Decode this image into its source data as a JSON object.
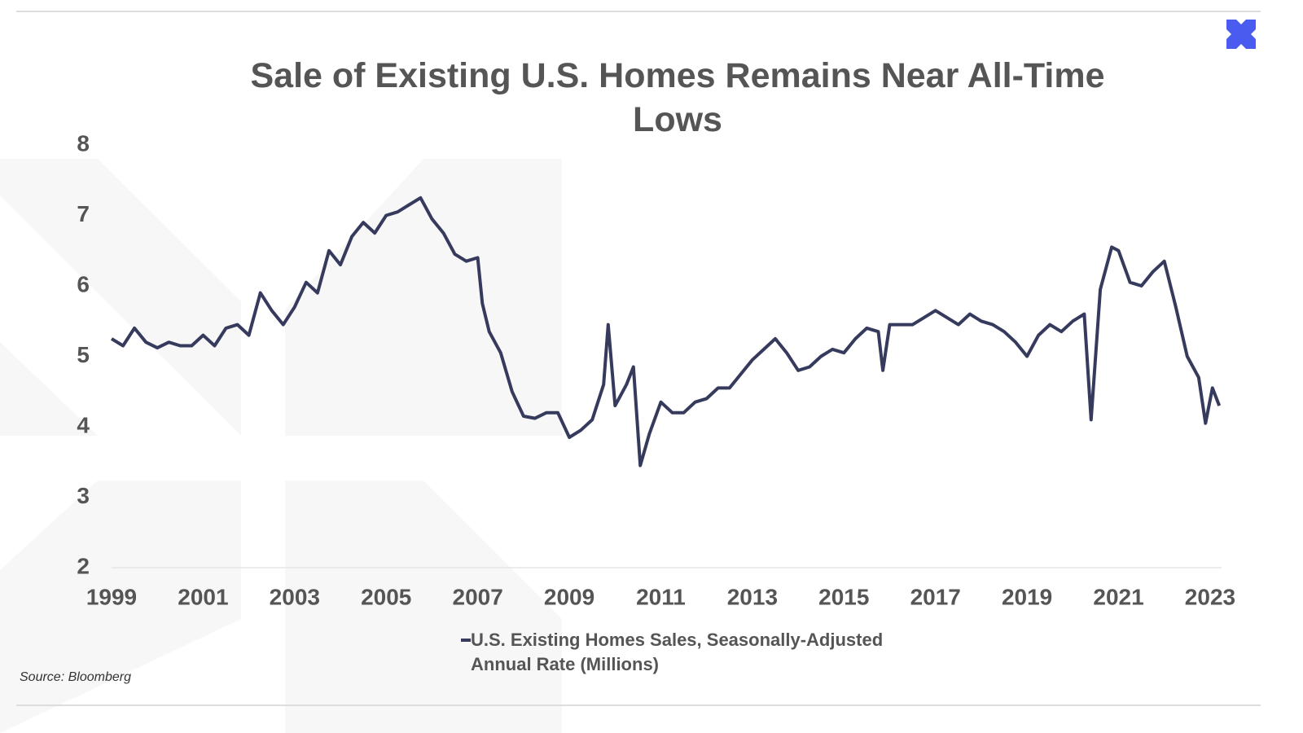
{
  "chart_data": {
    "type": "line",
    "title": "Sale of Existing U.S. Homes Remains Near All-Time Lows",
    "source": "Source: Bloomberg",
    "x": [
      1999.0,
      1999.25,
      1999.5,
      1999.75,
      2000.0,
      2000.25,
      2000.5,
      2000.75,
      2001.0,
      2001.25,
      2001.5,
      2001.75,
      2002.0,
      2002.25,
      2002.5,
      2002.75,
      2003.0,
      2003.25,
      2003.5,
      2003.75,
      2004.0,
      2004.25,
      2004.5,
      2004.75,
      2005.0,
      2005.25,
      2005.5,
      2005.75,
      2006.0,
      2006.25,
      2006.5,
      2006.75,
      2007.0,
      2007.1,
      2007.25,
      2007.5,
      2007.75,
      2008.0,
      2008.25,
      2008.5,
      2008.75,
      2009.0,
      2009.25,
      2009.5,
      2009.75,
      2009.85,
      2010.0,
      2010.25,
      2010.4,
      2010.55,
      2010.75,
      2011.0,
      2011.25,
      2011.5,
      2011.75,
      2012.0,
      2012.25,
      2012.5,
      2012.75,
      2013.0,
      2013.25,
      2013.5,
      2013.75,
      2014.0,
      2014.25,
      2014.5,
      2014.75,
      2015.0,
      2015.25,
      2015.5,
      2015.75,
      2015.85,
      2016.0,
      2016.25,
      2016.5,
      2016.75,
      2017.0,
      2017.25,
      2017.5,
      2017.75,
      2018.0,
      2018.25,
      2018.5,
      2018.75,
      2019.0,
      2019.25,
      2019.5,
      2019.75,
      2020.0,
      2020.25,
      2020.4,
      2020.6,
      2020.85,
      2021.0,
      2021.25,
      2021.5,
      2021.75,
      2022.0,
      2022.25,
      2022.5,
      2022.75,
      2022.9,
      2023.05,
      2023.2
    ],
    "series": [
      {
        "name": "U.S. Existing Homes Sales, Seasonally-Adjusted Annual Rate (Millions)",
        "color": "#363b5e",
        "values": [
          5.25,
          5.15,
          5.4,
          5.2,
          5.12,
          5.2,
          5.15,
          5.15,
          5.3,
          5.15,
          5.4,
          5.45,
          5.3,
          5.9,
          5.65,
          5.45,
          5.7,
          6.05,
          5.9,
          6.5,
          6.3,
          6.7,
          6.9,
          6.75,
          7.0,
          7.05,
          7.15,
          7.25,
          6.95,
          6.75,
          6.45,
          6.35,
          6.4,
          5.75,
          5.35,
          5.05,
          4.5,
          4.15,
          4.12,
          4.2,
          4.2,
          3.85,
          3.95,
          4.1,
          4.6,
          5.45,
          4.3,
          4.6,
          4.85,
          3.45,
          3.9,
          4.35,
          4.2,
          4.2,
          4.35,
          4.4,
          4.55,
          4.55,
          4.75,
          4.95,
          5.1,
          5.25,
          5.05,
          4.8,
          4.85,
          5.0,
          5.1,
          5.05,
          5.25,
          5.4,
          5.35,
          4.8,
          5.45,
          5.45,
          5.45,
          5.55,
          5.65,
          5.55,
          5.45,
          5.6,
          5.5,
          5.45,
          5.35,
          5.2,
          5.0,
          5.3,
          5.45,
          5.35,
          5.5,
          5.6,
          4.1,
          5.95,
          6.55,
          6.5,
          6.05,
          6.0,
          6.2,
          6.35,
          5.7,
          5.0,
          4.7,
          4.05,
          4.55,
          4.3
        ]
      }
    ],
    "xlim": [
      1999,
      2023.25
    ],
    "xticks": [
      1999,
      2001,
      2003,
      2005,
      2007,
      2009,
      2011,
      2013,
      2015,
      2017,
      2019,
      2021,
      2023
    ],
    "ylim": [
      2,
      8
    ],
    "yticks": [
      2,
      3,
      4,
      5,
      6,
      7,
      8
    ],
    "grid": false
  }
}
